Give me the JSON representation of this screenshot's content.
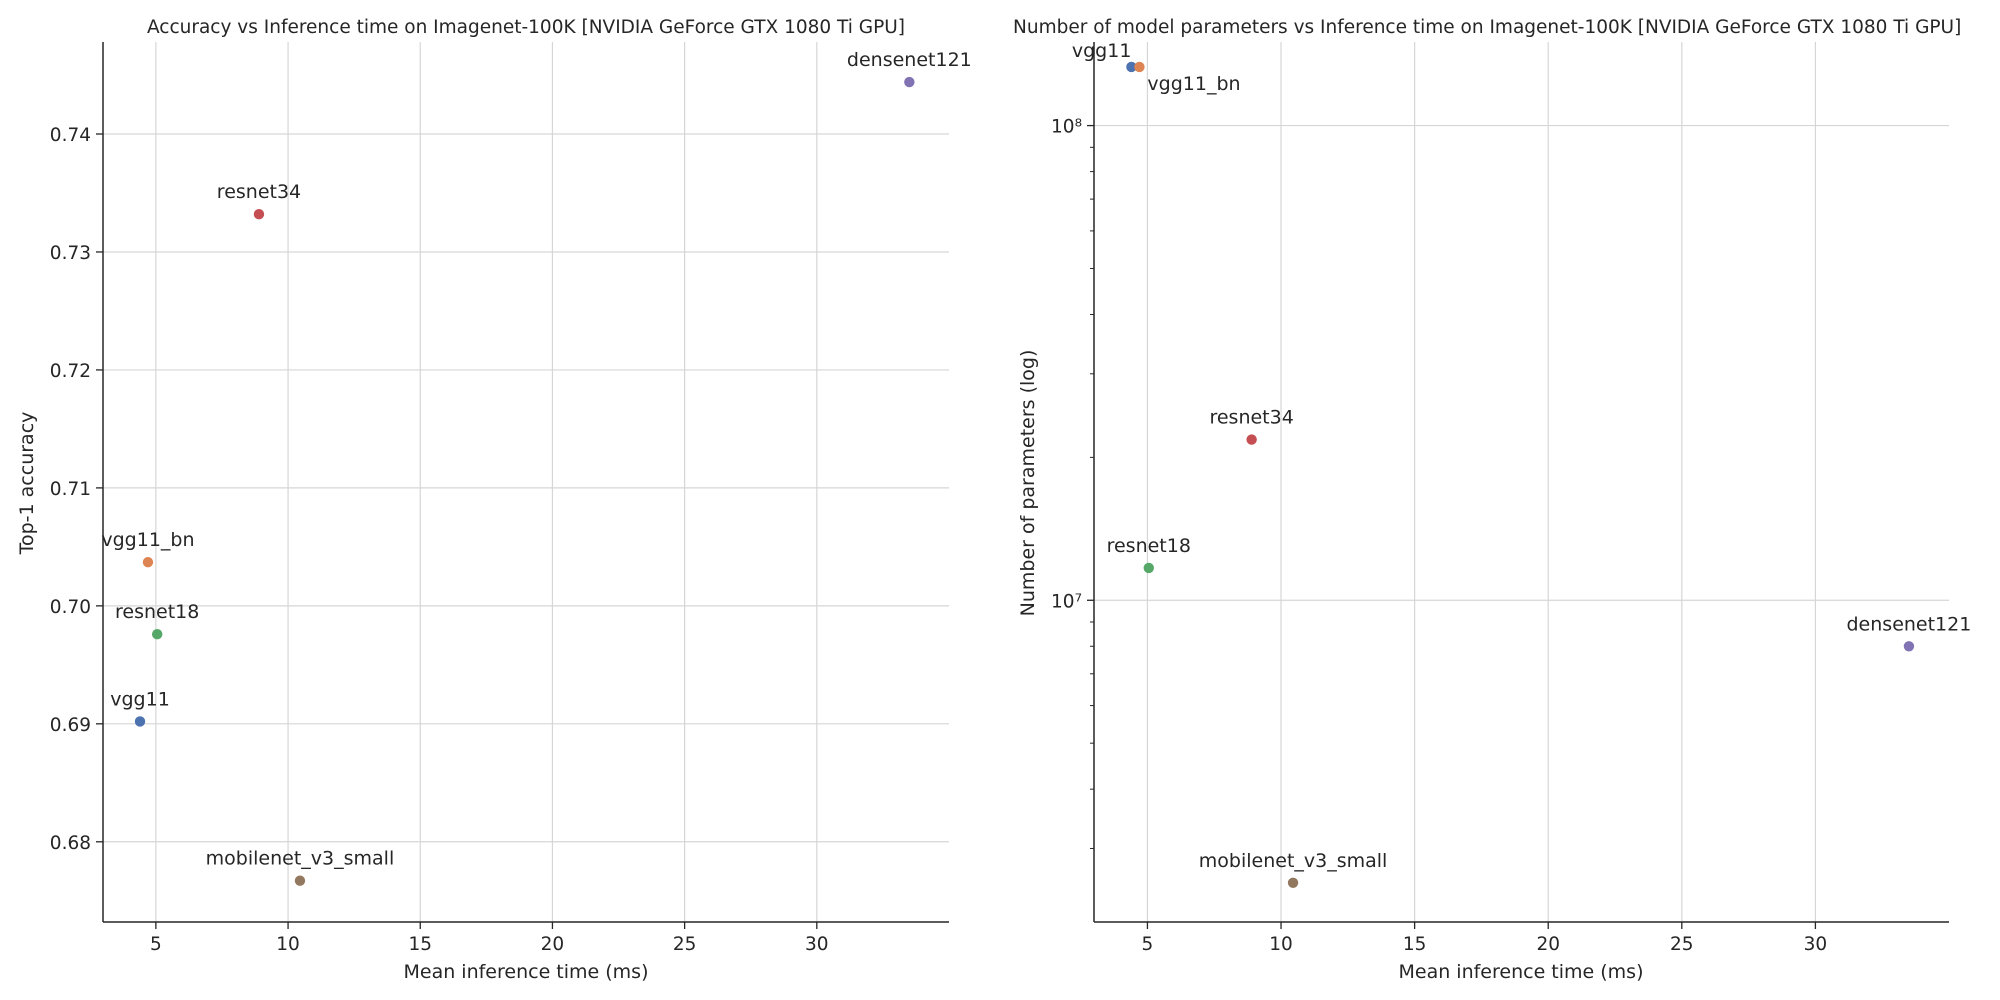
{
  "chart_data": [
    {
      "type": "scatter",
      "title": "Accuracy vs Inference time on Imagenet-100K [NVIDIA GeForce GTX 1080 Ti GPU]",
      "xlabel": "Mean inference time (ms)",
      "ylabel": "Top-1 accuracy",
      "xlim": [
        3.0,
        35.0
      ],
      "ylim": [
        0.6732,
        0.7478
      ],
      "yscale": "linear",
      "grid": true,
      "xticks": [
        5,
        10,
        15,
        20,
        25,
        30
      ],
      "xtick_labels": [
        "5",
        "10",
        "15",
        "20",
        "25",
        "30"
      ],
      "yticks": [
        0.68,
        0.69,
        0.7,
        0.71,
        0.72,
        0.73,
        0.74
      ],
      "ytick_labels": [
        "0.68",
        "0.69",
        "0.70",
        "0.71",
        "0.72",
        "0.73",
        "0.74"
      ],
      "points": [
        {
          "label": "vgg11",
          "x": 4.4,
          "y": 0.6902,
          "color": "#4c72b0"
        },
        {
          "label": "vgg11_bn",
          "x": 4.7,
          "y": 0.7037,
          "color": "#dd8452"
        },
        {
          "label": "resnet18",
          "x": 5.05,
          "y": 0.6976,
          "color": "#55a868"
        },
        {
          "label": "resnet34",
          "x": 8.9,
          "y": 0.7332,
          "color": "#c44e52"
        },
        {
          "label": "densenet121",
          "x": 33.5,
          "y": 0.7444,
          "color": "#8172b3"
        },
        {
          "label": "mobilenet_v3_small",
          "x": 10.45,
          "y": 0.6767,
          "color": "#937860"
        }
      ]
    },
    {
      "type": "scatter",
      "title": "Number of model parameters vs Inference time on Imagenet-100K [NVIDIA GeForce GTX 1080 Ti GPU]",
      "xlabel": "Mean inference time (ms)",
      "ylabel": "Number of parameters (log)",
      "xlim": [
        3.0,
        35.0
      ],
      "ylim": [
        2100000,
        150000000
      ],
      "yscale": "log",
      "grid": true,
      "xticks": [
        5,
        10,
        15,
        20,
        25,
        30
      ],
      "xtick_labels": [
        "5",
        "10",
        "15",
        "20",
        "25",
        "30"
      ],
      "yticks_major": [
        10000000,
        100000000
      ],
      "ytick_labels": [
        "10⁷",
        "10⁸"
      ],
      "yticks_minor": [
        3000000,
        4000000,
        5000000,
        6000000,
        7000000,
        8000000,
        9000000,
        20000000,
        30000000,
        40000000,
        50000000,
        60000000,
        70000000,
        80000000,
        90000000
      ],
      "points": [
        {
          "label": "vgg11",
          "x": 4.4,
          "y": 132900000,
          "color": "#4c72b0"
        },
        {
          "label": "vgg11_bn",
          "x": 4.7,
          "y": 132900000,
          "color": "#dd8452"
        },
        {
          "label": "resnet18",
          "x": 5.05,
          "y": 11700000,
          "color": "#55a868"
        },
        {
          "label": "resnet34",
          "x": 8.9,
          "y": 21800000,
          "color": "#c44e52"
        },
        {
          "label": "densenet121",
          "x": 33.5,
          "y": 8000000,
          "color": "#8172b3"
        },
        {
          "label": "mobilenet_v3_small",
          "x": 10.45,
          "y": 2540000,
          "color": "#937860"
        }
      ]
    }
  ]
}
